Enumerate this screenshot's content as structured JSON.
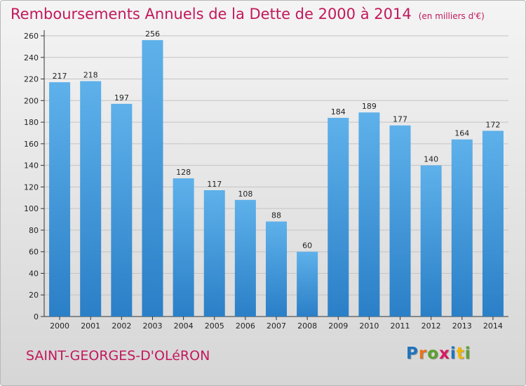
{
  "header": {
    "title": "Remboursements Annuels de la Dette de 2000 à 2014",
    "unit": "(en milliers d'€)"
  },
  "footer": {
    "commune": "SAINT-GEORGES-D'OLéRON",
    "logo_letters": [
      {
        "char": "P",
        "color": "#1e73be"
      },
      {
        "char": "r",
        "color": "#e8731a"
      },
      {
        "char": "o",
        "color": "#5aa02c"
      },
      {
        "char": "x",
        "color": "#d81b60"
      },
      {
        "char": "i",
        "color": "#1e73be"
      },
      {
        "char": "t",
        "color": "#f2b705"
      },
      {
        "char": "i",
        "color": "#5aa02c"
      }
    ]
  },
  "colors": {
    "bar_light": "#5eb1ea",
    "bar_dark": "#2a7fc7",
    "title": "#c2185b",
    "grid": "#c4c4c4"
  },
  "chart_data": {
    "type": "bar",
    "title": "Remboursements Annuels de la Dette de 2000 à 2014",
    "categories": [
      "2000",
      "2001",
      "2002",
      "2003",
      "2004",
      "2005",
      "2006",
      "2007",
      "2008",
      "2009",
      "2010",
      "2011",
      "2012",
      "2013",
      "2014"
    ],
    "values": [
      217,
      218,
      197,
      256,
      128,
      117,
      108,
      88,
      60,
      184,
      189,
      177,
      140,
      164,
      172
    ],
    "ylim": [
      0,
      260
    ],
    "yticks": [
      0,
      20,
      40,
      60,
      80,
      100,
      120,
      140,
      160,
      180,
      200,
      220,
      240,
      260
    ],
    "grid": true,
    "data_labels": true
  }
}
